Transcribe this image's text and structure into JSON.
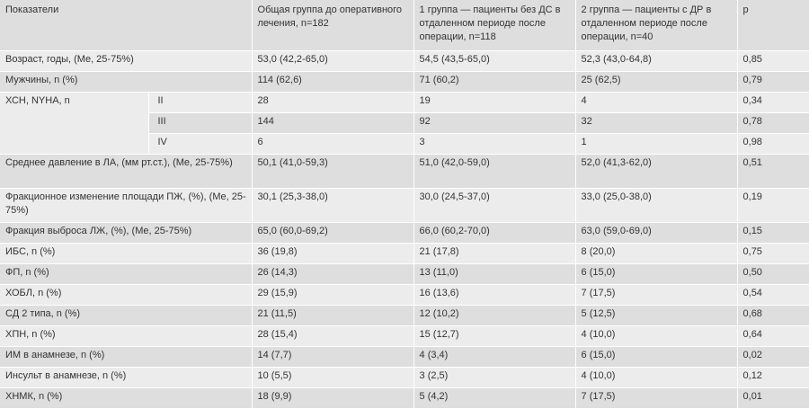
{
  "table": {
    "header": [
      "Показатели",
      "Общая группа до оперативного лечения, n=182",
      "1 группа — пациенты без ДС в отдаленном периоде после операции, n=118",
      "2 группа — пациенты с ДР в отдаленном периоде после операции, n=40",
      "p"
    ],
    "rows": [
      {
        "label": "Возраст, годы, (Me, 25-75%)",
        "total": "53,0 (42,2-65,0)",
        "g1": "54,5 (43,5-65,0)",
        "g2": "52,3 (43,0-64,8)",
        "p": "0,85"
      },
      {
        "label": "Мужчины, n (%)",
        "total": "114 (62,6)",
        "g1": "71 (60,2)",
        "g2": "25 (62,5)",
        "p": "0,79"
      },
      {
        "label": "ХСН, NYHA, n",
        "sub": "II",
        "total": "28",
        "g1": "19",
        "g2": "4",
        "p": "0,34"
      },
      {
        "sub": "III",
        "total": "144",
        "g1": "92",
        "g2": "32",
        "p": "0,78"
      },
      {
        "sub": "IV",
        "total": "6",
        "g1": "3",
        "g2": "1",
        "p": "0,98"
      },
      {
        "label": "Среднее давление в ЛА, (мм рт.ст.), (Me, 25-75%)",
        "total": "50,1 (41,0-59,3)",
        "g1": "51,0 (42,0-59,0)",
        "g2": "52,0 (41,3-62,0)",
        "p": "0,51"
      },
      {
        "label": "Фракционное изменение площади ПЖ, (%), (Me, 25-75%)",
        "total": "30,1 (25,3-38,0)",
        "g1": "30,0 (24,5-37,0)",
        "g2": "33,0 (25,0-38,0)",
        "p": "0,19"
      },
      {
        "label": "Фракция выброса ЛЖ, (%), (Me, 25-75%)",
        "total": "65,0 (60,0-69,2)",
        "g1": "66,0 (60,2-70,0)",
        "g2": "63,0 (59,0-69,0)",
        "p": "0,15"
      },
      {
        "label": "ИБС, n (%)",
        "total": "36 (19,8)",
        "g1": "21 (17,8)",
        "g2": "8 (20,0)",
        "p": "0,75"
      },
      {
        "label": "ФП, n (%)",
        "total": "26 (14,3)",
        "g1": "13 (11,0)",
        "g2": "6 (15,0)",
        "p": "0,50"
      },
      {
        "label": "ХОБЛ, n (%)",
        "total": "29 (15,9)",
        "g1": "16 (13,6)",
        "g2": "7 (17,5)",
        "p": "0,54"
      },
      {
        "label": "СД 2 типа, n (%)",
        "total": "21 (11,5)",
        "g1": "12 (10,2)",
        "g2": "5 (12,5)",
        "p": "0,68"
      },
      {
        "label": "ХПН, n (%)",
        "total": "28 (15,4)",
        "g1": "15 (12,7)",
        "g2": "4 (10,0)",
        "p": "0,64"
      },
      {
        "label": "ИМ в анамнезе, n (%)",
        "total": "14 (7,7)",
        "g1": "4 (3,4)",
        "g2": "6 (15,0)",
        "p": "0,02"
      },
      {
        "label": "Инсульт в анамнезе, n (%)",
        "total": "10 (5,5)",
        "g1": "3 (2,5)",
        "g2": "4 (10,0)",
        "p": "0,12"
      },
      {
        "label": "ХНМК, n (%)",
        "total": "18 (9,9)",
        "g1": "5 (4,2)",
        "g2": "7 (17,5)",
        "p": "0,01"
      }
    ]
  }
}
